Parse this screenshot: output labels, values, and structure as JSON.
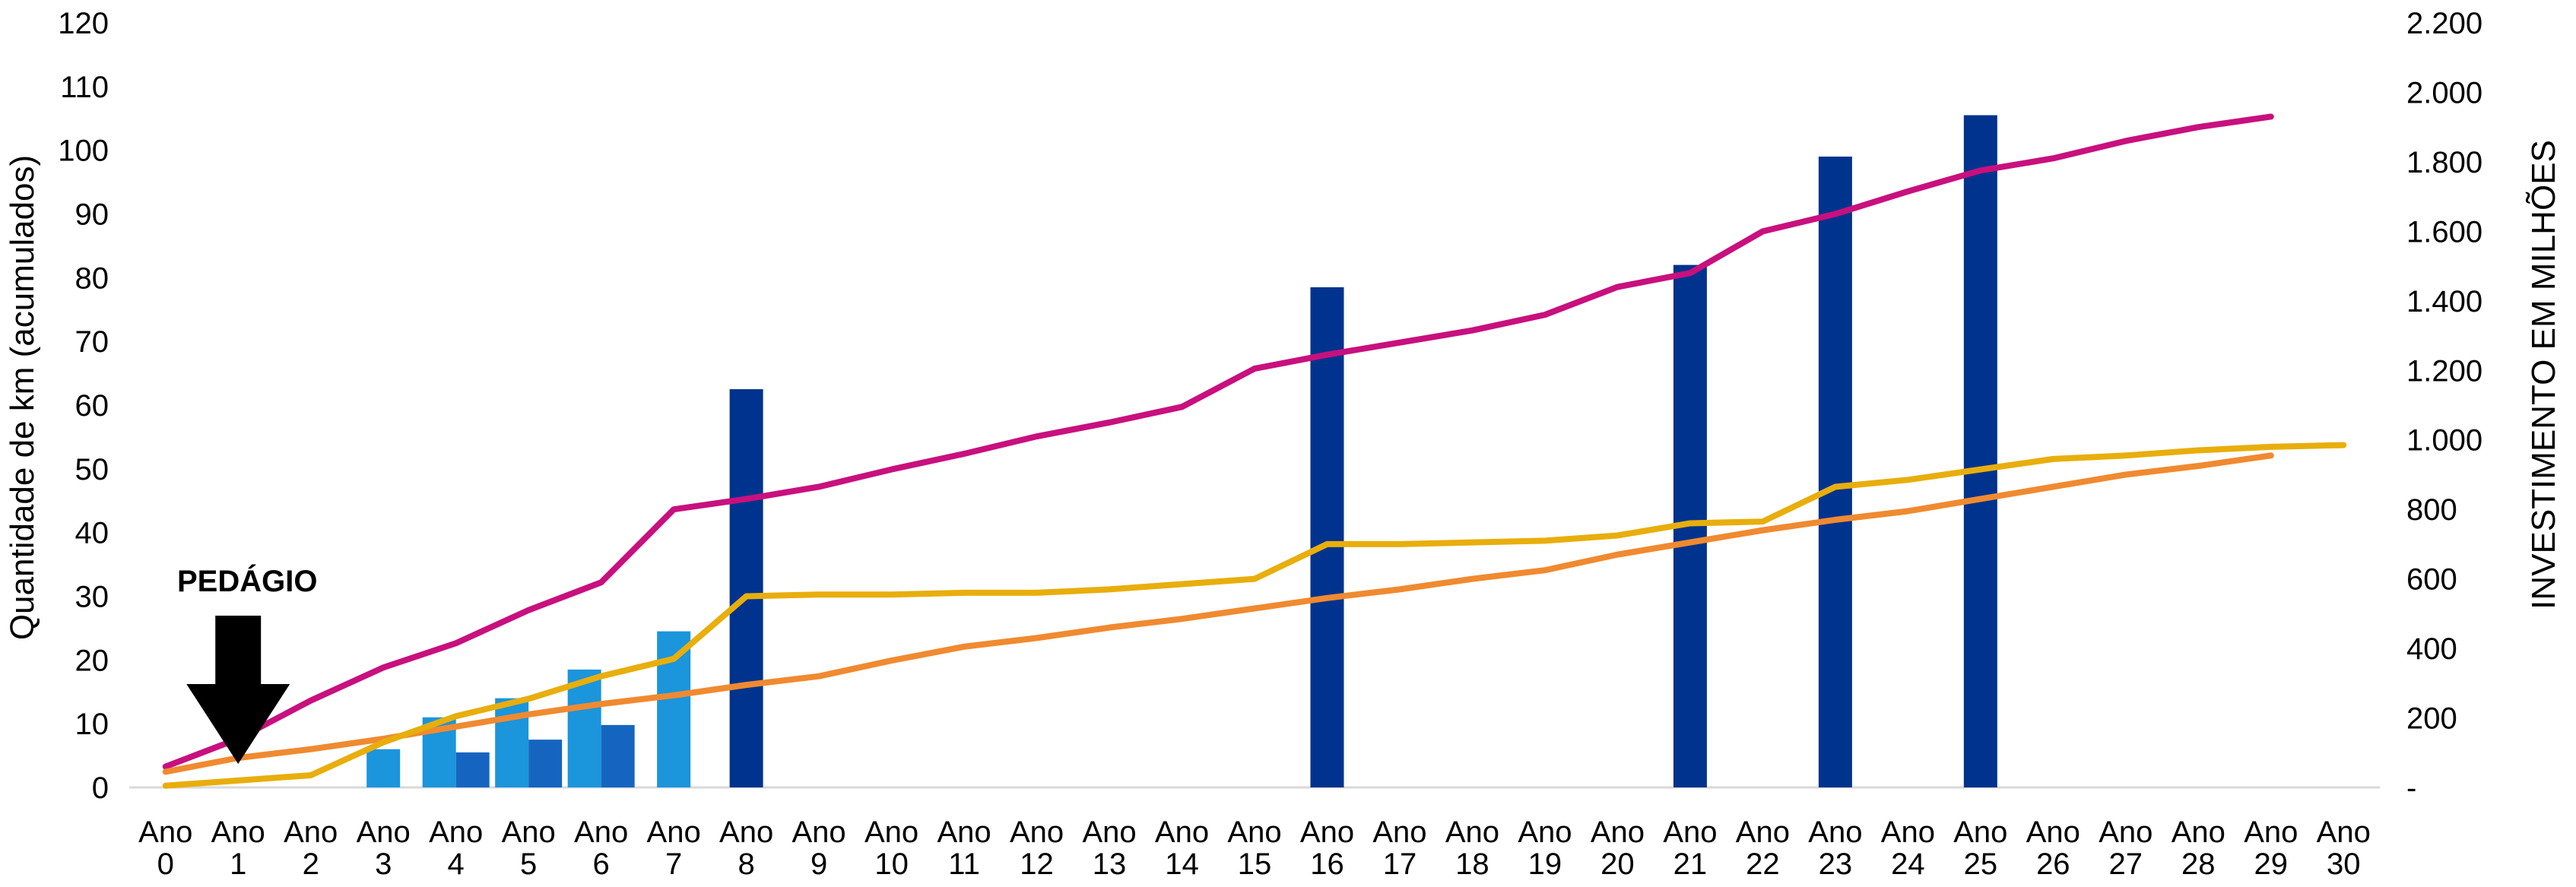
{
  "chart_data": {
    "type": "bar",
    "categories": [
      "Ano 0",
      "Ano 1",
      "Ano 2",
      "Ano 3",
      "Ano 4",
      "Ano 5",
      "Ano 6",
      "Ano 7",
      "Ano 8",
      "Ano 9",
      "Ano 10",
      "Ano 11",
      "Ano 12",
      "Ano 13",
      "Ano 14",
      "Ano 15",
      "Ano 16",
      "Ano 17",
      "Ano 18",
      "Ano 19",
      "Ano 20",
      "Ano 21",
      "Ano 22",
      "Ano 23",
      "Ano 24",
      "Ano 25",
      "Ano 26",
      "Ano 27",
      "Ano 28",
      "Ano 29",
      "Ano 30"
    ],
    "category_words": [
      "Ano",
      "Ano",
      "Ano",
      "Ano",
      "Ano",
      "Ano",
      "Ano",
      "Ano",
      "Ano",
      "Ano",
      "Ano",
      "Ano",
      "Ano",
      "Ano",
      "Ano",
      "Ano",
      "Ano",
      "Ano",
      "Ano",
      "Ano",
      "Ano",
      "Ano",
      "Ano",
      "Ano",
      "Ano",
      "Ano",
      "Ano",
      "Ano",
      "Ano",
      "Ano",
      "Ano"
    ],
    "category_numbers": [
      "0",
      "1",
      "2",
      "3",
      "4",
      "5",
      "6",
      "7",
      "8",
      "9",
      "10",
      "11",
      "12",
      "13",
      "14",
      "15",
      "16",
      "17",
      "18",
      "19",
      "20",
      "21",
      "22",
      "23",
      "24",
      "25",
      "26",
      "27",
      "28",
      "29",
      "30"
    ],
    "ylabel": "Quantidade  de km (acumulados)",
    "y2label": "INVESTIMENTO   EM MILHÕES",
    "ylim": [
      0,
      120
    ],
    "y2lim": [
      0,
      2200
    ],
    "y_ticks": [
      "0",
      "10",
      "20",
      "30",
      "40",
      "50",
      "60",
      "70",
      "80",
      "90",
      "100",
      "110",
      "120"
    ],
    "y2_ticks": [
      "-",
      "200",
      "400",
      "600",
      "800",
      "1.000",
      "1.200",
      "1.400",
      "1.600",
      "1.800",
      "2.000",
      "2.200"
    ],
    "grid": false,
    "annotation": {
      "text": "PEDÁGIO",
      "x_category": 1
    },
    "bar_series": [
      {
        "color": "#1B95DC",
        "values": [
          null,
          null,
          null,
          6,
          11,
          14,
          18.5,
          24.5,
          null,
          null,
          null,
          null,
          null,
          null,
          null,
          null,
          null,
          null,
          null,
          null,
          null,
          null,
          null,
          null,
          null,
          null,
          null,
          null,
          null,
          null,
          null
        ]
      },
      {
        "color": "#1565C0",
        "values": [
          null,
          null,
          null,
          null,
          5.5,
          7.5,
          9.8,
          null,
          null,
          null,
          null,
          null,
          null,
          null,
          null,
          null,
          null,
          null,
          null,
          null,
          null,
          null,
          null,
          null,
          null,
          null,
          null,
          null,
          null,
          null,
          null
        ]
      },
      {
        "color": "#00338D",
        "values": [
          null,
          null,
          null,
          null,
          null,
          null,
          null,
          null,
          62.5,
          null,
          null,
          null,
          null,
          null,
          null,
          null,
          78.5,
          null,
          null,
          null,
          null,
          82,
          null,
          99,
          null,
          105.5,
          null,
          null,
          null,
          null,
          null
        ]
      }
    ],
    "line_series": [
      {
        "color": "#C8107E",
        "axis": "right",
        "values": [
          60,
          140,
          250,
          345,
          415,
          510,
          590,
          800,
          830,
          865,
          915,
          960,
          1010,
          1050,
          1095,
          1205,
          1245,
          1280,
          1315,
          1360,
          1440,
          1480,
          1600,
          1650,
          1715,
          1775,
          1810,
          1860,
          1900,
          1930,
          null
        ]
      },
      {
        "color": "#F08A30",
        "axis": "right",
        "values": [
          45,
          85,
          110,
          140,
          175,
          210,
          240,
          265,
          295,
          320,
          365,
          405,
          430,
          460,
          485,
          515,
          545,
          570,
          600,
          625,
          670,
          705,
          740,
          770,
          795,
          830,
          865,
          900,
          925,
          955,
          null
        ]
      },
      {
        "color": "#E8AE0C",
        "axis": "right",
        "values": [
          5,
          20,
          35,
          130,
          205,
          255,
          320,
          370,
          550,
          555,
          555,
          560,
          560,
          570,
          585,
          600,
          700,
          700,
          705,
          710,
          725,
          760,
          765,
          865,
          885,
          915,
          945,
          955,
          970,
          980,
          985
        ]
      }
    ]
  }
}
